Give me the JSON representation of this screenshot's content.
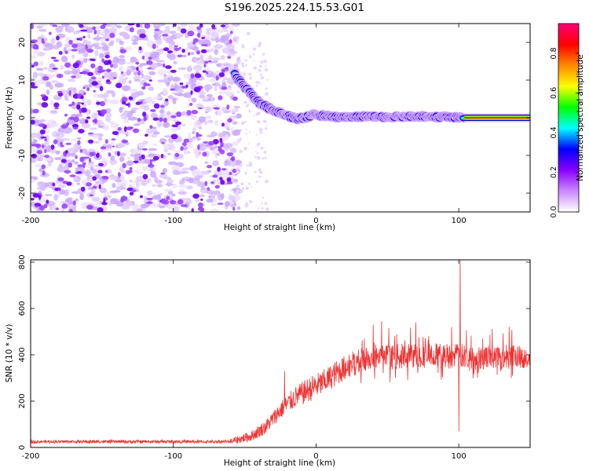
{
  "title": "S196.2025.224.15.53.G01",
  "chart_data": [
    {
      "type": "heatmap",
      "xlabel": "Height of straight line (km)",
      "ylabel": "Frequency (Hz)",
      "xlim": [
        -200,
        150
      ],
      "ylim": [
        -25,
        25
      ],
      "xticks": [
        -200,
        -100,
        0,
        100
      ],
      "yticks": [
        -20,
        -10,
        0,
        10,
        20
      ],
      "xtick_labels": [
        "-200",
        "-100",
        "0",
        "100"
      ],
      "ytick_labels": [
        "-20",
        "-10",
        "0",
        "10",
        "20"
      ],
      "noise_region_x": [
        -200,
        -56
      ],
      "ridge": [
        {
          "x": -57,
          "y": 11.5
        },
        {
          "x": -52,
          "y": 9
        },
        {
          "x": -46,
          "y": 6.5
        },
        {
          "x": -40,
          "y": 4
        },
        {
          "x": -33,
          "y": 2.5
        },
        {
          "x": -26,
          "y": 1.5
        },
        {
          "x": -20,
          "y": 0.5
        },
        {
          "x": -14,
          "y": -0.3
        },
        {
          "x": -8,
          "y": 0
        },
        {
          "x": -2,
          "y": 0.8
        },
        {
          "x": 5,
          "y": 0.5
        },
        {
          "x": 15,
          "y": 0.2
        },
        {
          "x": 30,
          "y": 0.3
        },
        {
          "x": 50,
          "y": 0.2
        },
        {
          "x": 70,
          "y": 0.3
        },
        {
          "x": 90,
          "y": 0.2
        },
        {
          "x": 100,
          "y": 0
        },
        {
          "x": 104,
          "y": 0
        },
        {
          "x": 150,
          "y": 0
        }
      ],
      "solid_line_from_x": 104,
      "colorbar": {
        "label": "Normalized spectral amplitude",
        "range": [
          0,
          0.95
        ],
        "ticks": [
          0.0,
          0.2,
          0.4,
          0.6,
          0.8
        ],
        "tick_labels": [
          "0.0",
          "0.2",
          "0.4",
          "0.6",
          "0.8"
        ],
        "colors": [
          "#ffffff",
          "#cc88ff",
          "#8800ff",
          "#0000ff",
          "#00ffff",
          "#00ff00",
          "#ffff00",
          "#ff8800",
          "#ff0000",
          "#ff0077"
        ]
      }
    },
    {
      "type": "line",
      "xlabel": "Height of straight line (km)",
      "ylabel": "SNR (10 * v/v)",
      "xlim": [
        -200,
        150
      ],
      "ylim": [
        0,
        810
      ],
      "xticks": [
        -200,
        -100,
        0,
        100
      ],
      "yticks": [
        0,
        200,
        400,
        600,
        800
      ],
      "xtick_labels": [
        "-200",
        "-100",
        "0",
        "100"
      ],
      "ytick_labels": [
        "0",
        "200",
        "400",
        "600",
        "800"
      ],
      "color": "#ee3333",
      "series": [
        {
          "name": "SNR",
          "points": [
            {
              "x": -200,
              "y": 25
            },
            {
              "x": -150,
              "y": 25
            },
            {
              "x": -100,
              "y": 25
            },
            {
              "x": -60,
              "y": 25
            },
            {
              "x": -45,
              "y": 50
            },
            {
              "x": -35,
              "y": 90
            },
            {
              "x": -25,
              "y": 160
            },
            {
              "x": -15,
              "y": 215
            },
            {
              "x": -5,
              "y": 250
            },
            {
              "x": 5,
              "y": 280
            },
            {
              "x": 15,
              "y": 325
            },
            {
              "x": 25,
              "y": 360
            },
            {
              "x": 35,
              "y": 380
            },
            {
              "x": 50,
              "y": 390
            },
            {
              "x": 65,
              "y": 395
            },
            {
              "x": 80,
              "y": 398
            },
            {
              "x": 95,
              "y": 395
            },
            {
              "x": 105,
              "y": 390
            },
            {
              "x": 120,
              "y": 390
            },
            {
              "x": 135,
              "y": 395
            },
            {
              "x": 150,
              "y": 395
            }
          ],
          "spikes": [
            {
              "x": 101,
              "y": 820
            },
            {
              "x": 100,
              "y": 70
            },
            {
              "x": -22,
              "y": 330
            },
            {
              "x": 40,
              "y": 530
            },
            {
              "x": 46,
              "y": 545
            },
            {
              "x": 70,
              "y": 540
            },
            {
              "x": 95,
              "y": 520
            }
          ]
        }
      ]
    }
  ]
}
